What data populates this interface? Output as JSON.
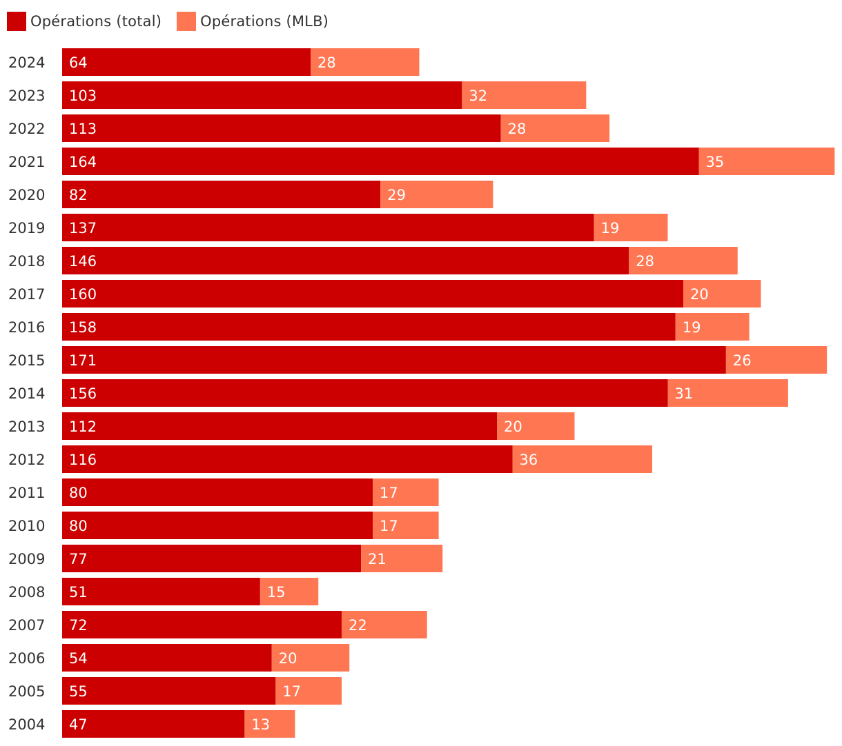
{
  "legend": {
    "total_label": "Opérations (total)",
    "mlb_label": "Opérations (MLB)"
  },
  "colors": {
    "total": "#cc0000",
    "mlb": "#ff7752"
  },
  "chart_data": {
    "type": "bar",
    "orientation": "horizontal",
    "stacked": true,
    "categories": [
      "2024",
      "2023",
      "2022",
      "2021",
      "2020",
      "2019",
      "2018",
      "2017",
      "2016",
      "2015",
      "2014",
      "2013",
      "2012",
      "2011",
      "2010",
      "2009",
      "2008",
      "2007",
      "2006",
      "2005",
      "2004"
    ],
    "series": [
      {
        "name": "Opérations (total)",
        "values": [
          64,
          103,
          113,
          164,
          82,
          137,
          146,
          160,
          158,
          171,
          156,
          112,
          116,
          80,
          80,
          77,
          51,
          72,
          54,
          55,
          47
        ]
      },
      {
        "name": "Opérations (MLB)",
        "values": [
          28,
          32,
          28,
          35,
          29,
          19,
          28,
          20,
          19,
          26,
          31,
          20,
          36,
          17,
          17,
          21,
          15,
          22,
          20,
          17,
          13
        ]
      }
    ],
    "title": "",
    "xlabel": "",
    "ylabel": "",
    "legend_position": "top-left",
    "grid": false
  }
}
